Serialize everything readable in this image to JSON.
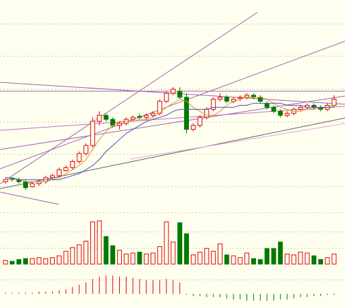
{
  "chart_data": {
    "type": "candlestick",
    "up_color": "#e00000",
    "down_color": "#007a00",
    "ylim": [
      0,
      100
    ],
    "open": [
      12,
      13.5,
      13,
      12,
      9.5,
      11,
      12,
      14,
      15,
      17.5,
      19,
      22,
      26,
      30,
      42,
      45,
      43,
      40,
      41,
      43,
      44.5,
      44,
      45,
      46,
      52,
      56,
      57,
      54,
      38,
      40,
      44,
      48,
      53,
      54,
      52,
      53.5,
      54,
      55,
      54,
      51,
      49,
      47,
      45,
      46,
      48,
      49,
      50,
      49,
      48,
      50
    ],
    "high": [
      14,
      14,
      14,
      13,
      12,
      13,
      15,
      16,
      19,
      20,
      23,
      27,
      31,
      44,
      47,
      46,
      44,
      42,
      44,
      45,
      46,
      46,
      47,
      53,
      57,
      59,
      59,
      56,
      41,
      45,
      49,
      54,
      56,
      55,
      54,
      55,
      56,
      56,
      55,
      52,
      50,
      48,
      47,
      49,
      50,
      51,
      51,
      50,
      51,
      55
    ],
    "low": [
      11,
      12,
      11,
      8,
      9,
      10,
      11,
      13,
      14,
      17,
      18,
      21,
      25,
      29,
      40,
      42,
      39,
      38,
      40,
      42,
      43,
      43,
      44,
      45,
      51,
      55,
      53,
      36,
      37,
      39,
      43,
      47,
      52,
      51,
      51,
      52,
      53,
      53,
      51,
      48,
      46,
      44,
      44,
      45,
      47,
      48,
      48,
      47,
      47,
      49
    ],
    "close": [
      13,
      13,
      12,
      9,
      11,
      12,
      14,
      15,
      18,
      19,
      22,
      26,
      30,
      42,
      45,
      43,
      40,
      41,
      43,
      44,
      44,
      45,
      46,
      52,
      56,
      58,
      54,
      38,
      40,
      44,
      48,
      53,
      54,
      52,
      53,
      54,
      55,
      54,
      52,
      49,
      47,
      45,
      46,
      48,
      49,
      50,
      49,
      48,
      50,
      53
    ],
    "ma": [
      {
        "color": "#e09030",
        "values": [
          13,
          13,
          13,
          12,
          12,
          12,
          12,
          13,
          14,
          16,
          18,
          20,
          23,
          28,
          33,
          37,
          40,
          42,
          42,
          42,
          43,
          43,
          44,
          46,
          49,
          51,
          53,
          52,
          49,
          47,
          45,
          45,
          47,
          50,
          52,
          53,
          54,
          54,
          54,
          53,
          51,
          49,
          48,
          47,
          47,
          48,
          48,
          49,
          49,
          50
        ]
      },
      {
        "color": "#4050c0",
        "values": [
          14,
          14,
          13,
          13,
          13,
          13,
          13,
          13,
          13,
          14,
          15,
          16,
          18,
          20,
          23,
          27,
          30,
          33,
          36,
          38,
          40,
          42,
          43,
          44,
          45,
          47,
          48,
          48,
          48,
          48,
          48,
          49,
          49,
          49,
          49,
          50,
          50,
          51,
          51,
          51,
          51,
          51,
          50,
          50,
          50,
          49,
          49,
          49,
          49,
          49
        ]
      }
    ],
    "volume": {
      "ylim": [
        0,
        100
      ],
      "values": [
        8,
        6,
        10,
        12,
        12,
        14,
        12,
        14,
        18,
        28,
        36,
        42,
        50,
        92,
        94,
        60,
        40,
        30,
        22,
        24,
        26,
        22,
        24,
        38,
        92,
        48,
        90,
        66,
        20,
        26,
        34,
        28,
        44,
        20,
        18,
        14,
        24,
        12,
        10,
        34,
        34,
        48,
        22,
        20,
        26,
        24,
        18,
        10,
        14,
        22
      ]
    },
    "macd": {
      "ylim": [
        -10,
        20
      ],
      "values": [
        1,
        1,
        1,
        1,
        1,
        2,
        2,
        2,
        3,
        4,
        6,
        8,
        10,
        13,
        15,
        16,
        16,
        15,
        15,
        14,
        13,
        12,
        12,
        12,
        13,
        12,
        10,
        -1,
        -2,
        -2,
        -3,
        -3,
        -3,
        -4,
        -5,
        -5,
        -6,
        -6,
        -6,
        -6,
        -6,
        -5,
        -5,
        -4,
        -3,
        -3,
        -2,
        -2,
        -1,
        -1
      ]
    }
  }
}
